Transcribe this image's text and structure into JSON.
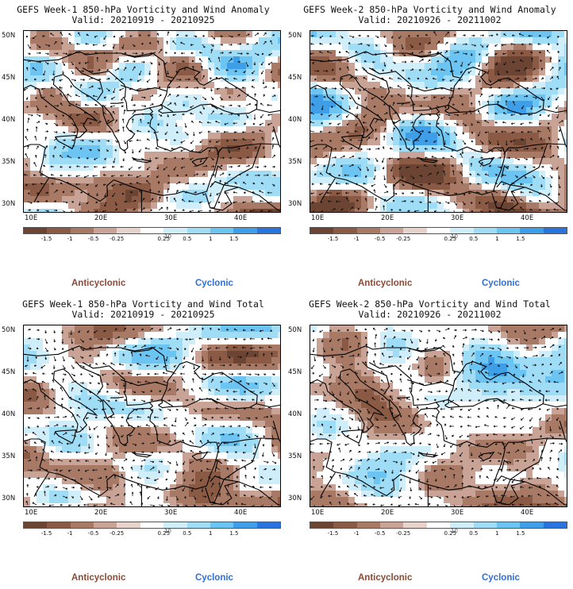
{
  "panels": [
    {
      "title": "GEFS Week-1 850-hPa Vorticity and Wind Anomaly",
      "valid": "Valid: 20210919 - 20210925",
      "seed": 11
    },
    {
      "title": "GEFS Week-2 850-hPa Vorticity and Wind Anomaly",
      "valid": "Valid: 20210926 - 20211002",
      "seed": 23
    },
    {
      "title": "GEFS Week-1 850-hPa Vorticity and Wind Total",
      "valid": "Valid: 20210919 - 20210925",
      "seed": 37
    },
    {
      "title": "GEFS Week-2 850-hPa Vorticity and Wind Total",
      "valid": "Valid: 20210926 - 20211002",
      "seed": 53
    }
  ],
  "axes": {
    "lat_labels": [
      "50N",
      "45N",
      "40N",
      "35N",
      "30N"
    ],
    "lon_labels": [
      "10E",
      "20E",
      "30E",
      "40E"
    ]
  },
  "colorbar": {
    "levels": [
      "-1.5",
      "-1",
      "-0.5",
      "-0.25",
      "0.25",
      "0.5",
      "1",
      "1.5"
    ],
    "units": "10",
    "colors": [
      "#6b4433",
      "#8a5a44",
      "#a87a66",
      "#c9a496",
      "#e7d3cb",
      "#ffffff",
      "#cfeefa",
      "#9fdcf6",
      "#6cc4f2",
      "#3e9ee8",
      "#2a74e0"
    ]
  },
  "legend": {
    "anticyclonic": "Anticyclonic",
    "cyclonic": "Cyclonic"
  },
  "colors": {
    "anticyclonic": "#8a4a36",
    "cyclonic": "#2f6fd6"
  }
}
